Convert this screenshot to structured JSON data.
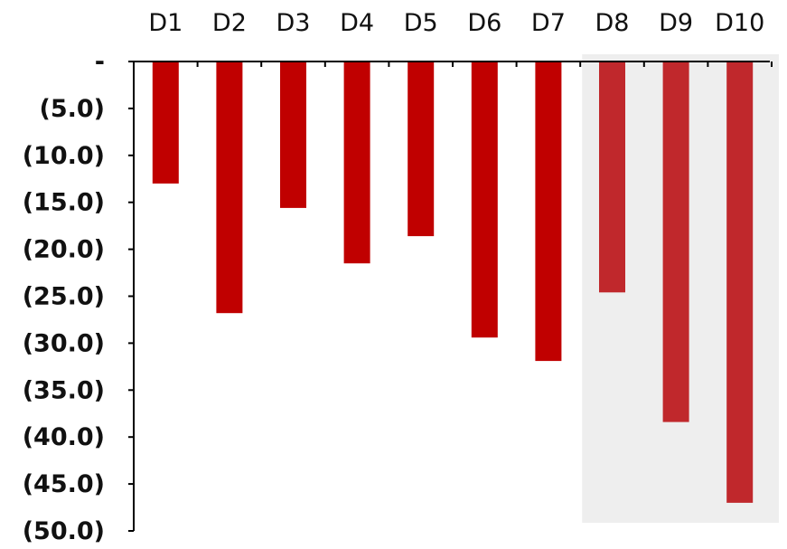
{
  "chart_data": {
    "type": "bar",
    "categories": [
      "D1",
      "D2",
      "D3",
      "D4",
      "D5",
      "D6",
      "D7",
      "D8",
      "D9",
      "D10"
    ],
    "values": [
      -13.0,
      -26.8,
      -15.6,
      -21.5,
      -18.6,
      -29.4,
      -31.9,
      -24.6,
      -38.4,
      -47.0
    ],
    "ylim": [
      -50,
      0
    ],
    "y_ticks": [
      0,
      -5,
      -10,
      -15,
      -20,
      -25,
      -30,
      -35,
      -40,
      -45,
      -50
    ],
    "y_tick_labels": [
      "-",
      "(5.0)",
      "(10.0)",
      "(15.0)",
      "(20.0)",
      "(25.0)",
      "(30.0)",
      "(35.0)",
      "(40.0)",
      "(45.0)",
      "(50.0)"
    ],
    "category_axis_position": "top",
    "grid": false,
    "highlighted_categories": [
      "D8",
      "D9",
      "D10"
    ],
    "colors": {
      "bar": "#c00000",
      "bar_highlighted": "#c0282c",
      "highlight_background": "#eeeeee",
      "axis": "#000000"
    }
  }
}
